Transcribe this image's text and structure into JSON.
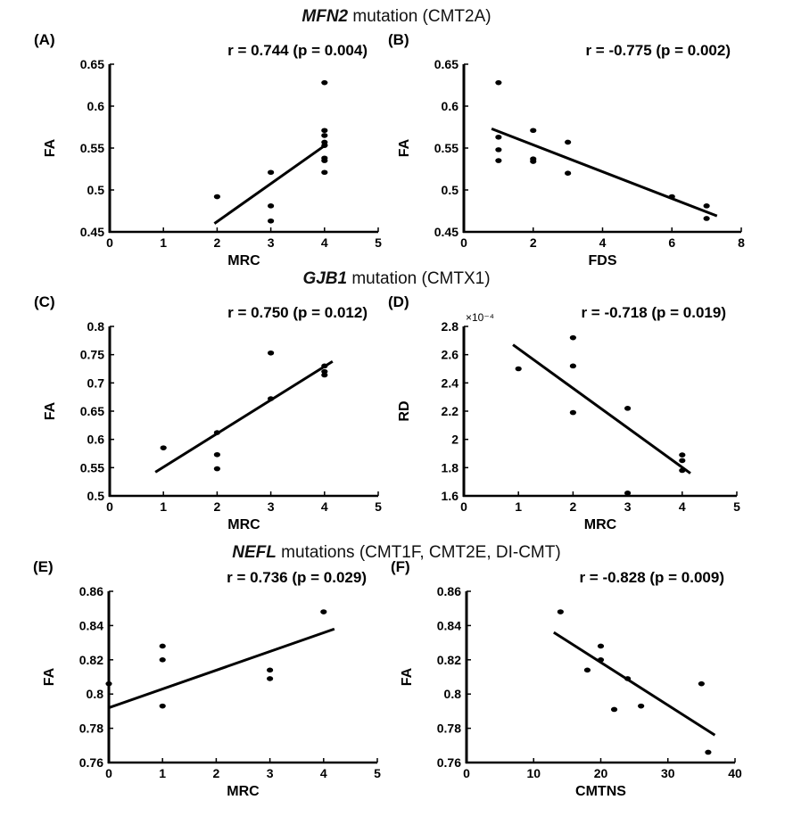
{
  "sections": [
    {
      "gene": "MFN2",
      "rest": " mutation (CMT2A)"
    },
    {
      "gene": "GJB1",
      "rest": " mutation (CMTX1)"
    },
    {
      "gene": "NEFL",
      "rest": " mutations (CMT1F, CMT2E, DI-CMT)"
    }
  ],
  "chart_data": [
    {
      "type": "scatter",
      "panel": "(A)",
      "stat": "r = 0.744 (p = 0.004)",
      "xlabel": "MRC",
      "ylabel": "FA",
      "exponent": "",
      "xlim": [
        0,
        5
      ],
      "ylim": [
        0.45,
        0.65
      ],
      "xticks": [
        0,
        1,
        2,
        3,
        4,
        5
      ],
      "yticks": [
        0.45,
        0.5,
        0.55,
        0.6,
        0.65
      ],
      "xtick_labels": [
        "0",
        "1",
        "2",
        "3",
        "4",
        "5"
      ],
      "ytick_labels": [
        "0.45",
        "0.5",
        "0.55",
        "0.6",
        "0.65"
      ],
      "points": [
        [
          2,
          0.492
        ],
        [
          3,
          0.521
        ],
        [
          3,
          0.481
        ],
        [
          3,
          0.463
        ],
        [
          4,
          0.628
        ],
        [
          4,
          0.571
        ],
        [
          4,
          0.565
        ],
        [
          4,
          0.557
        ],
        [
          4,
          0.553
        ],
        [
          4,
          0.538
        ],
        [
          4,
          0.535
        ],
        [
          4,
          0.521
        ]
      ],
      "fit": [
        [
          1.95,
          0.46
        ],
        [
          4.05,
          0.555
        ]
      ],
      "grid": false,
      "legend": "none"
    },
    {
      "type": "scatter",
      "panel": "(B)",
      "stat": "r = -0.775 (p = 0.002)",
      "xlabel": "FDS",
      "ylabel": "FA",
      "exponent": "",
      "xlim": [
        0,
        8
      ],
      "ylim": [
        0.45,
        0.65
      ],
      "xticks": [
        0,
        2,
        4,
        6,
        8
      ],
      "yticks": [
        0.45,
        0.5,
        0.55,
        0.6,
        0.65
      ],
      "xtick_labels": [
        "0",
        "2",
        "4",
        "6",
        "8"
      ],
      "ytick_labels": [
        "0.45",
        "0.5",
        "0.55",
        "0.6",
        "0.65"
      ],
      "points": [
        [
          1,
          0.628
        ],
        [
          1,
          0.563
        ],
        [
          1,
          0.548
        ],
        [
          1,
          0.535
        ],
        [
          2,
          0.571
        ],
        [
          2,
          0.537
        ],
        [
          2,
          0.534
        ],
        [
          3,
          0.557
        ],
        [
          3,
          0.52
        ],
        [
          6,
          0.492
        ],
        [
          7,
          0.481
        ],
        [
          7,
          0.466
        ]
      ],
      "fit": [
        [
          0.8,
          0.573
        ],
        [
          7.3,
          0.469
        ]
      ],
      "grid": false,
      "legend": "none"
    },
    {
      "type": "scatter",
      "panel": "(C)",
      "stat": "r = 0.750 (p = 0.012)",
      "xlabel": "MRC",
      "ylabel": "FA",
      "exponent": "",
      "xlim": [
        0,
        5
      ],
      "ylim": [
        0.5,
        0.8
      ],
      "xticks": [
        0,
        1,
        2,
        3,
        4,
        5
      ],
      "yticks": [
        0.5,
        0.55,
        0.6,
        0.65,
        0.7,
        0.75,
        0.8
      ],
      "xtick_labels": [
        "0",
        "1",
        "2",
        "3",
        "4",
        "5"
      ],
      "ytick_labels": [
        "0.5",
        "0.55",
        "0.6",
        "0.65",
        "0.7",
        "0.75",
        "0.8"
      ],
      "points": [
        [
          1,
          0.585
        ],
        [
          2,
          0.612
        ],
        [
          2,
          0.573
        ],
        [
          2,
          0.548
        ],
        [
          3,
          0.753
        ],
        [
          3,
          0.672
        ],
        [
          4,
          0.73
        ],
        [
          4,
          0.72
        ],
        [
          4,
          0.714
        ]
      ],
      "fit": [
        [
          0.85,
          0.542
        ],
        [
          4.15,
          0.738
        ]
      ],
      "grid": false,
      "legend": "none"
    },
    {
      "type": "scatter",
      "panel": "(D)",
      "stat": "r = -0.718 (p = 0.019)",
      "xlabel": "MRC",
      "ylabel": "RD",
      "exponent": "×10⁻⁴",
      "xlim": [
        0,
        5
      ],
      "ylim": [
        1.6,
        2.8
      ],
      "xticks": [
        0,
        1,
        2,
        3,
        4,
        5
      ],
      "yticks": [
        1.6,
        1.8,
        2,
        2.2,
        2.4,
        2.6,
        2.8
      ],
      "xtick_labels": [
        "0",
        "1",
        "2",
        "3",
        "4",
        "5"
      ],
      "ytick_labels": [
        "1.6",
        "1.8",
        "2",
        "2.2",
        "2.4",
        "2.6",
        "2.8"
      ],
      "points": [
        [
          1,
          2.5
        ],
        [
          2,
          2.72
        ],
        [
          2,
          2.52
        ],
        [
          2,
          2.19
        ],
        [
          3,
          2.22
        ],
        [
          3,
          1.62
        ],
        [
          4,
          1.89
        ],
        [
          4,
          1.85
        ],
        [
          4,
          1.78
        ]
      ],
      "fit": [
        [
          0.9,
          2.67
        ],
        [
          4.15,
          1.76
        ]
      ],
      "grid": false,
      "legend": "none"
    },
    {
      "type": "scatter",
      "panel": "(E)",
      "stat": "r = 0.736 (p = 0.029)",
      "xlabel": "MRC",
      "ylabel": "FA",
      "exponent": "",
      "xlim": [
        0,
        5
      ],
      "ylim": [
        0.76,
        0.86
      ],
      "xticks": [
        0,
        1,
        2,
        3,
        4,
        5
      ],
      "yticks": [
        0.76,
        0.78,
        0.8,
        0.82,
        0.84,
        0.86
      ],
      "xtick_labels": [
        "0",
        "1",
        "2",
        "3",
        "4",
        "5"
      ],
      "ytick_labels": [
        "0.76",
        "0.78",
        "0.8",
        "0.82",
        "0.84",
        "0.86"
      ],
      "points": [
        [
          0,
          0.806
        ],
        [
          1,
          0.828
        ],
        [
          1,
          0.82
        ],
        [
          1,
          0.793
        ],
        [
          3,
          0.814
        ],
        [
          3,
          0.809
        ],
        [
          4,
          0.848
        ]
      ],
      "fit": [
        [
          0,
          0.792
        ],
        [
          4.2,
          0.838
        ]
      ],
      "grid": false,
      "legend": "none"
    },
    {
      "type": "scatter",
      "panel": "(F)",
      "stat": "r = -0.828 (p = 0.009)",
      "xlabel": "CMTNS",
      "ylabel": "FA",
      "exponent": "",
      "xlim": [
        0,
        40
      ],
      "ylim": [
        0.76,
        0.86
      ],
      "xticks": [
        0,
        10,
        20,
        30,
        40
      ],
      "yticks": [
        0.76,
        0.78,
        0.8,
        0.82,
        0.84,
        0.86
      ],
      "xtick_labels": [
        "0",
        "10",
        "20",
        "30",
        "40"
      ],
      "ytick_labels": [
        "0.76",
        "0.78",
        "0.8",
        "0.82",
        "0.84",
        "0.86"
      ],
      "points": [
        [
          14,
          0.848
        ],
        [
          18,
          0.814
        ],
        [
          20,
          0.828
        ],
        [
          20,
          0.82
        ],
        [
          22,
          0.791
        ],
        [
          24,
          0.809
        ],
        [
          26,
          0.793
        ],
        [
          35,
          0.806
        ],
        [
          36,
          0.766
        ]
      ],
      "fit": [
        [
          13,
          0.836
        ],
        [
          37,
          0.776
        ]
      ],
      "grid": false,
      "legend": "none"
    }
  ]
}
